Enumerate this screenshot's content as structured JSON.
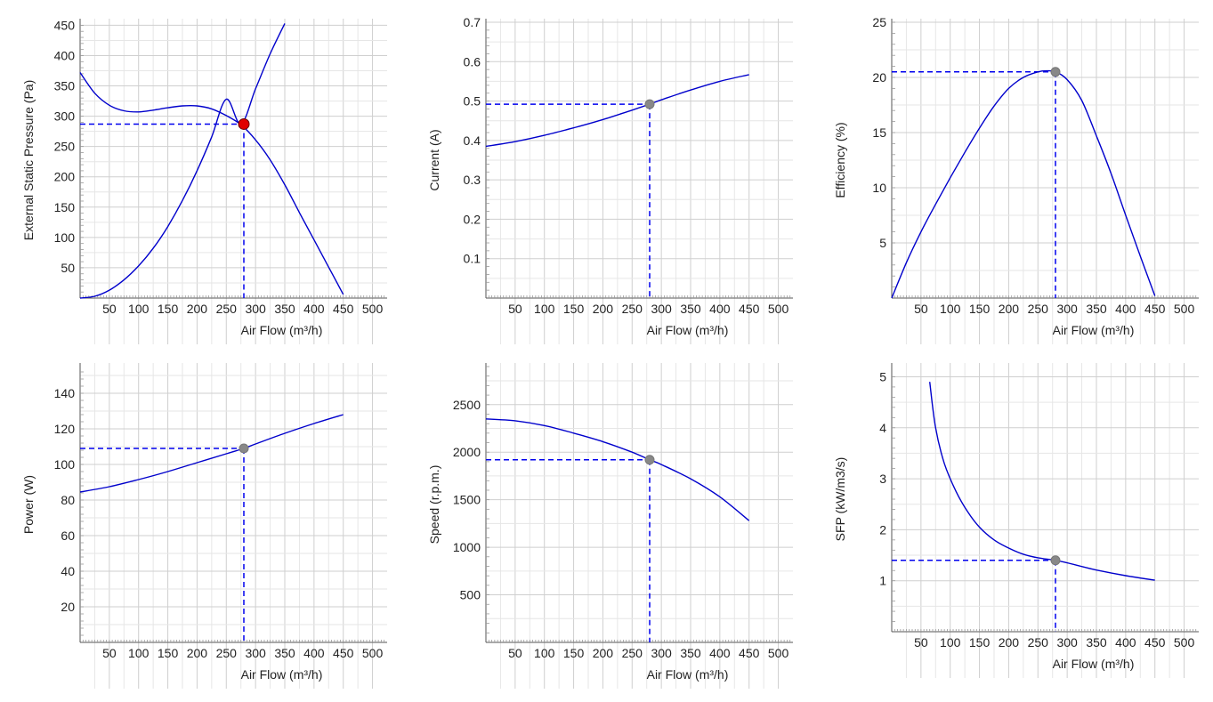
{
  "colors": {
    "curve": "#0000cc",
    "guide": "#0000ee",
    "operating_point": "#e00000",
    "marker": "#888888",
    "grid": "#cccccc",
    "axis": "#555555"
  },
  "chart_data": [
    {
      "id": "pressure",
      "type": "line",
      "xlabel": "Air Flow (m³/h)",
      "ylabel": "External Static Pressure (Pa)",
      "xlim": [
        0,
        525
      ],
      "ylim": [
        0,
        455
      ],
      "x_ticks": [
        50,
        100,
        150,
        200,
        250,
        300,
        350,
        400,
        450,
        500
      ],
      "y_ticks": [
        50,
        100,
        150,
        200,
        250,
        300,
        350,
        400,
        450
      ],
      "grid": true,
      "series": [
        {
          "x": [
            0,
            25,
            50,
            75,
            100,
            125,
            150,
            175,
            200,
            225,
            250,
            275,
            300,
            325,
            350,
            375,
            400,
            425,
            450
          ],
          "y": [
            372,
            338,
            318,
            309,
            307,
            310,
            314,
            317,
            317,
            312,
            301,
            286,
            261,
            228,
            187,
            141,
            96,
            51,
            6
          ]
        },
        {
          "x": [
            0,
            25,
            50,
            75,
            100,
            125,
            150,
            175,
            200,
            225,
            250,
            275,
            300,
            325,
            350
          ],
          "y": [
            0,
            3,
            13,
            30,
            53,
            82,
            118,
            161,
            210,
            266,
            328,
            287,
            345,
            403,
            453
          ]
        }
      ],
      "operating_point": {
        "x": 280,
        "y": 287
      },
      "marker_color": "#e00000"
    },
    {
      "id": "current",
      "type": "line",
      "xlabel": "Air Flow (m³/h)",
      "ylabel": "Current (A)",
      "xlim": [
        0,
        525
      ],
      "ylim": [
        0,
        0.7
      ],
      "x_ticks": [
        50,
        100,
        150,
        200,
        250,
        300,
        350,
        400,
        450,
        500
      ],
      "y_ticks": [
        0.1,
        0.2,
        0.3,
        0.4,
        0.5,
        0.6,
        0.7
      ],
      "y_tick_labels": [
        "0.1",
        "0.2",
        "0.3",
        "0.4",
        "0.5",
        "0.6",
        "0.7"
      ],
      "grid": true,
      "series": [
        {
          "x": [
            0,
            50,
            100,
            150,
            200,
            250,
            280,
            300,
            350,
            400,
            450
          ],
          "y": [
            0.385,
            0.397,
            0.413,
            0.432,
            0.453,
            0.477,
            0.492,
            0.503,
            0.528,
            0.55,
            0.567
          ]
        }
      ],
      "operating_point": {
        "x": 280,
        "y": 0.492
      },
      "marker_color": "#888888"
    },
    {
      "id": "efficiency",
      "type": "line",
      "xlabel": "Air Flow (m³/h)",
      "ylabel": "Efficiency (%)",
      "xlim": [
        0,
        525
      ],
      "ylim": [
        0,
        25
      ],
      "x_ticks": [
        50,
        100,
        150,
        200,
        250,
        300,
        350,
        400,
        450,
        500
      ],
      "y_ticks": [
        5,
        10,
        15,
        20,
        25
      ],
      "grid": true,
      "series": [
        {
          "x": [
            0,
            25,
            50,
            75,
            100,
            125,
            150,
            175,
            200,
            225,
            250,
            265,
            280,
            300,
            325,
            350,
            375,
            400,
            425,
            450
          ],
          "y": [
            0,
            3.2,
            6.0,
            8.5,
            10.9,
            13.2,
            15.4,
            17.4,
            19.0,
            20.0,
            20.5,
            20.6,
            20.5,
            19.8,
            17.9,
            14.7,
            11.3,
            7.5,
            3.8,
            0.2
          ]
        }
      ],
      "operating_point": {
        "x": 280,
        "y": 20.5
      },
      "marker_color": "#888888"
    },
    {
      "id": "power",
      "type": "line",
      "xlabel": "Air Flow (m³/h)",
      "ylabel": "Power (W)",
      "xlim": [
        0,
        525
      ],
      "ylim": [
        0,
        155
      ],
      "x_ticks": [
        50,
        100,
        150,
        200,
        250,
        300,
        350,
        400,
        450,
        500
      ],
      "y_ticks": [
        20,
        40,
        60,
        80,
        100,
        120,
        140
      ],
      "grid": true,
      "series": [
        {
          "x": [
            0,
            50,
            100,
            150,
            200,
            250,
            280,
            300,
            350,
            400,
            450
          ],
          "y": [
            84.5,
            87.5,
            91.5,
            96.0,
            101.0,
            106.0,
            109.0,
            111.5,
            117.5,
            123.0,
            128.0
          ]
        }
      ],
      "operating_point": {
        "x": 280,
        "y": 109
      },
      "marker_color": "#888888"
    },
    {
      "id": "speed",
      "type": "line",
      "xlabel": "Air Flow (m³/h)",
      "ylabel": "Speed (r.p.m.)",
      "xlim": [
        0,
        525
      ],
      "ylim": [
        0,
        2900
      ],
      "x_ticks": [
        50,
        100,
        150,
        200,
        250,
        300,
        350,
        400,
        450,
        500
      ],
      "y_ticks": [
        500,
        1000,
        1500,
        2000,
        2500
      ],
      "grid": true,
      "series": [
        {
          "x": [
            0,
            50,
            100,
            150,
            200,
            250,
            280,
            300,
            350,
            400,
            450
          ],
          "y": [
            2350,
            2330,
            2280,
            2200,
            2110,
            2000,
            1920,
            1870,
            1720,
            1530,
            1280
          ]
        }
      ],
      "operating_point": {
        "x": 280,
        "y": 1920
      },
      "marker_color": "#888888"
    },
    {
      "id": "sfp",
      "type": "line",
      "xlabel": "Air Flow (m³/h)",
      "ylabel": "SFP (kW/m3/s)",
      "xlim": [
        0,
        525
      ],
      "ylim": [
        0,
        5.2
      ],
      "x_ticks": [
        50,
        100,
        150,
        200,
        250,
        300,
        350,
        400,
        450,
        500
      ],
      "y_ticks": [
        1,
        2,
        3,
        4,
        5
      ],
      "grid": true,
      "series": [
        {
          "x": [
            65,
            75,
            90,
            110,
            130,
            150,
            175,
            200,
            225,
            250,
            280,
            300,
            350,
            400,
            450
          ],
          "y": [
            4.9,
            4.0,
            3.3,
            2.75,
            2.35,
            2.05,
            1.8,
            1.64,
            1.52,
            1.45,
            1.4,
            1.35,
            1.21,
            1.1,
            1.01
          ]
        }
      ],
      "operating_point": {
        "x": 280,
        "y": 1.4
      },
      "marker_color": "#888888"
    }
  ]
}
